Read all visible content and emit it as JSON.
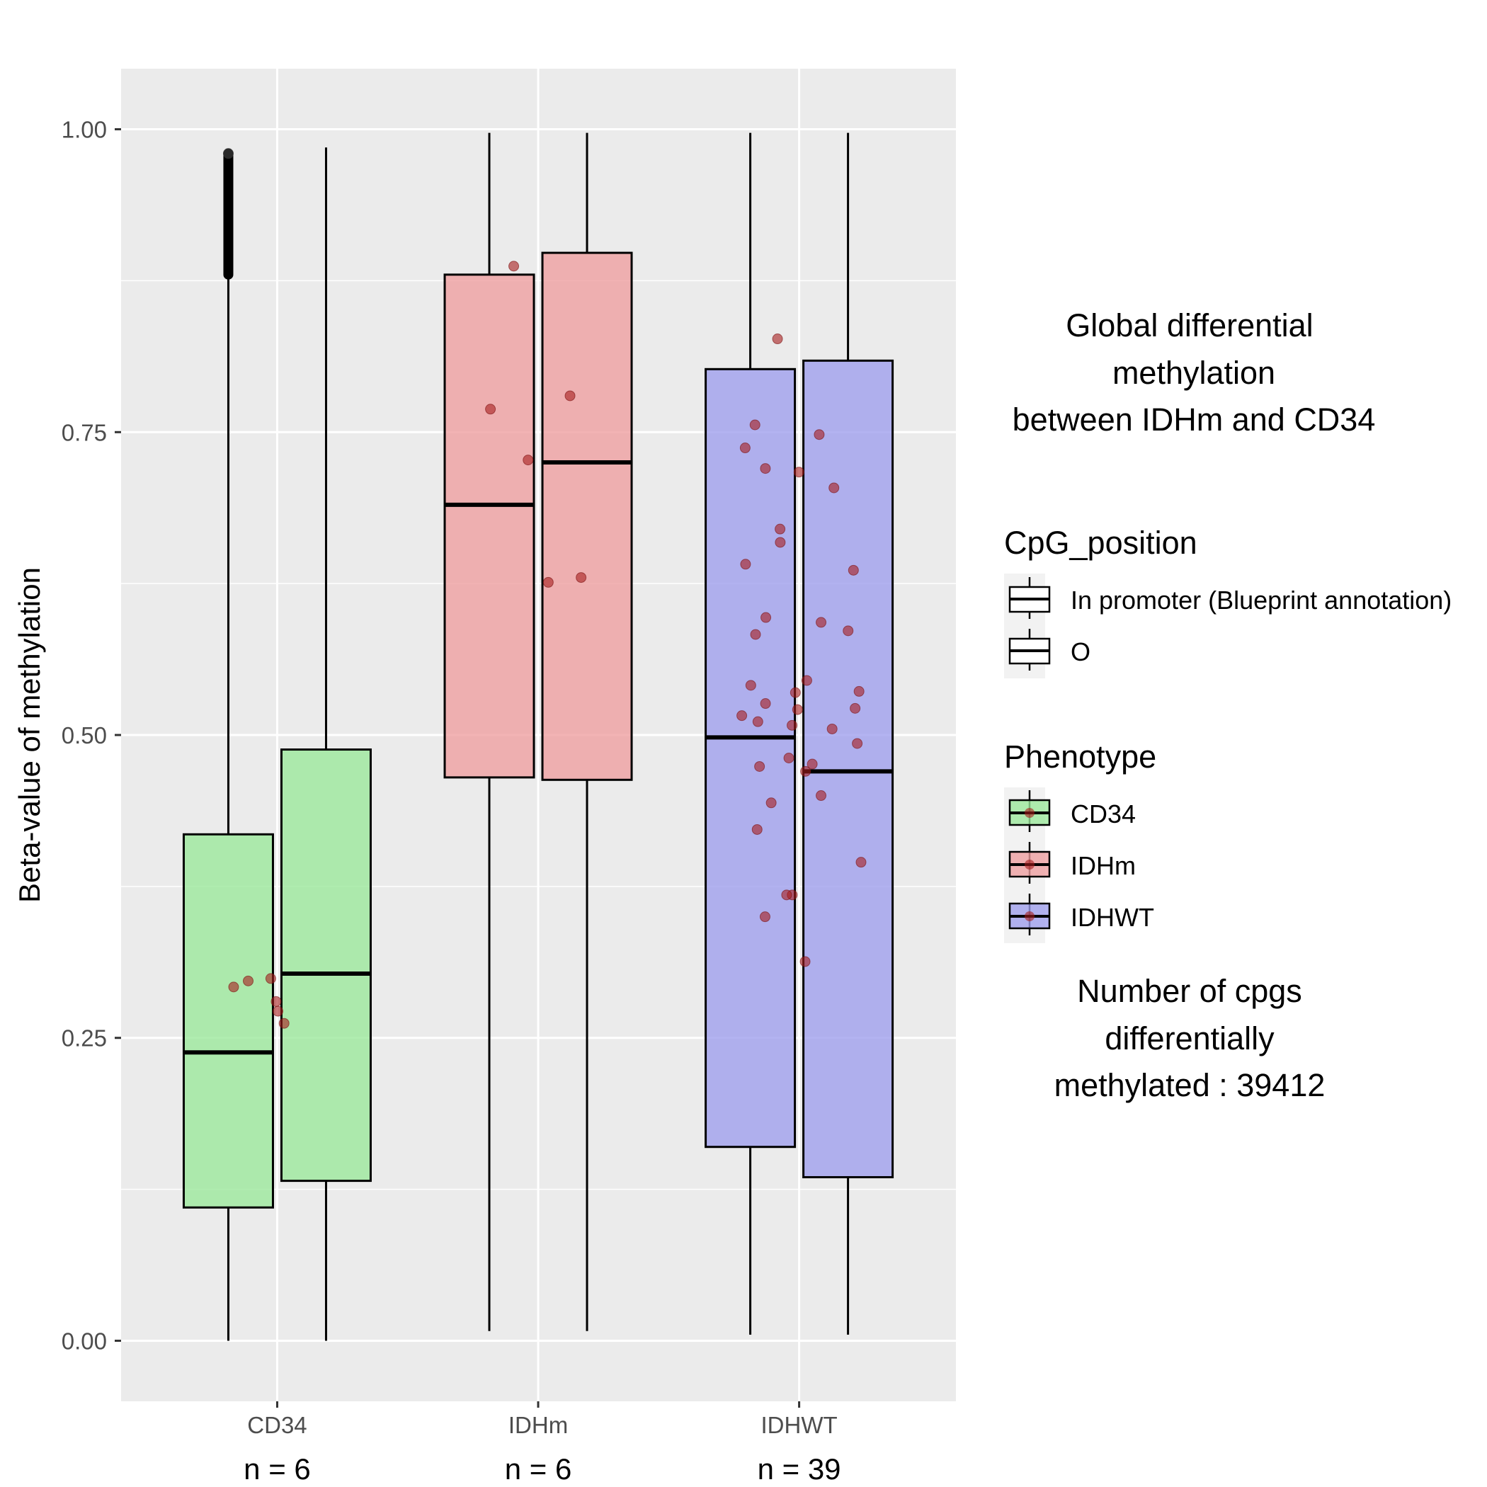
{
  "chart_data": {
    "type": "box",
    "ylabel": "Beta-value of methylation",
    "ylim": [
      -0.05,
      1.05
    ],
    "yticks": [
      "0.00",
      "0.25",
      "0.50",
      "0.75",
      "1.00"
    ],
    "categories": [
      "CD34",
      "IDHm",
      "IDHWT"
    ],
    "n_labels": [
      "n = 6",
      "n = 6",
      "n = 39"
    ],
    "fill_colors": {
      "CD34": "#9ae89a",
      "IDHm": "#ee9d9f",
      "IDHWT": "#9d9ded"
    },
    "boxes": [
      {
        "group": "CD34",
        "position": "In promoter (Blueprint annotation)",
        "min": 0.0,
        "q1": 0.11,
        "median": 0.238,
        "q3": 0.418,
        "max": 0.88,
        "outliers_range": [
          0.88,
          0.98
        ]
      },
      {
        "group": "CD34",
        "position": "O",
        "min": 0.0,
        "q1": 0.132,
        "median": 0.303,
        "q3": 0.488,
        "max": 0.985
      },
      {
        "group": "IDHm",
        "position": "In promoter (Blueprint annotation)",
        "min": 0.008,
        "q1": 0.465,
        "median": 0.69,
        "q3": 0.88,
        "max": 0.997
      },
      {
        "group": "IDHm",
        "position": "O",
        "min": 0.008,
        "q1": 0.463,
        "median": 0.725,
        "q3": 0.898,
        "max": 0.997
      },
      {
        "group": "IDHWT",
        "position": "In promoter (Blueprint annotation)",
        "min": 0.005,
        "q1": 0.16,
        "median": 0.498,
        "q3": 0.802,
        "max": 0.997
      },
      {
        "group": "IDHWT",
        "position": "O",
        "min": 0.005,
        "q1": 0.135,
        "median": 0.47,
        "q3": 0.809,
        "max": 0.997
      }
    ],
    "points": [
      {
        "group": "CD34",
        "values": [
          0.28,
          0.262,
          0.292,
          0.297,
          0.299,
          0.272
        ]
      },
      {
        "group": "IDHm",
        "values": [
          0.769,
          0.63,
          0.626,
          0.727,
          0.887,
          0.78
        ]
      },
      {
        "group": "IDHWT",
        "values": [
          0.748,
          0.737,
          0.717,
          0.72,
          0.593,
          0.583,
          0.545,
          0.521,
          0.511,
          0.516,
          0.522,
          0.536,
          0.541,
          0.508,
          0.493,
          0.474,
          0.481,
          0.47,
          0.45,
          0.444,
          0.422,
          0.395,
          0.368,
          0.35,
          0.313,
          0.827,
          0.756,
          0.704,
          0.659,
          0.67,
          0.641,
          0.636,
          0.597,
          0.586,
          0.535,
          0.526,
          0.476,
          0.368,
          0.505
        ]
      }
    ]
  },
  "legend": {
    "side_title": [
      "Global differential",
      "methylation",
      "between IDHm and CD34"
    ],
    "cpg_title": "CpG_position",
    "cpg_items": [
      "In promoter (Blueprint annotation)",
      "O"
    ],
    "pheno_title": "Phenotype",
    "pheno_items": [
      "CD34",
      "IDHm",
      "IDHWT"
    ],
    "count_text": [
      "Number of cpgs",
      "differentially",
      "methylated : 39412"
    ]
  }
}
